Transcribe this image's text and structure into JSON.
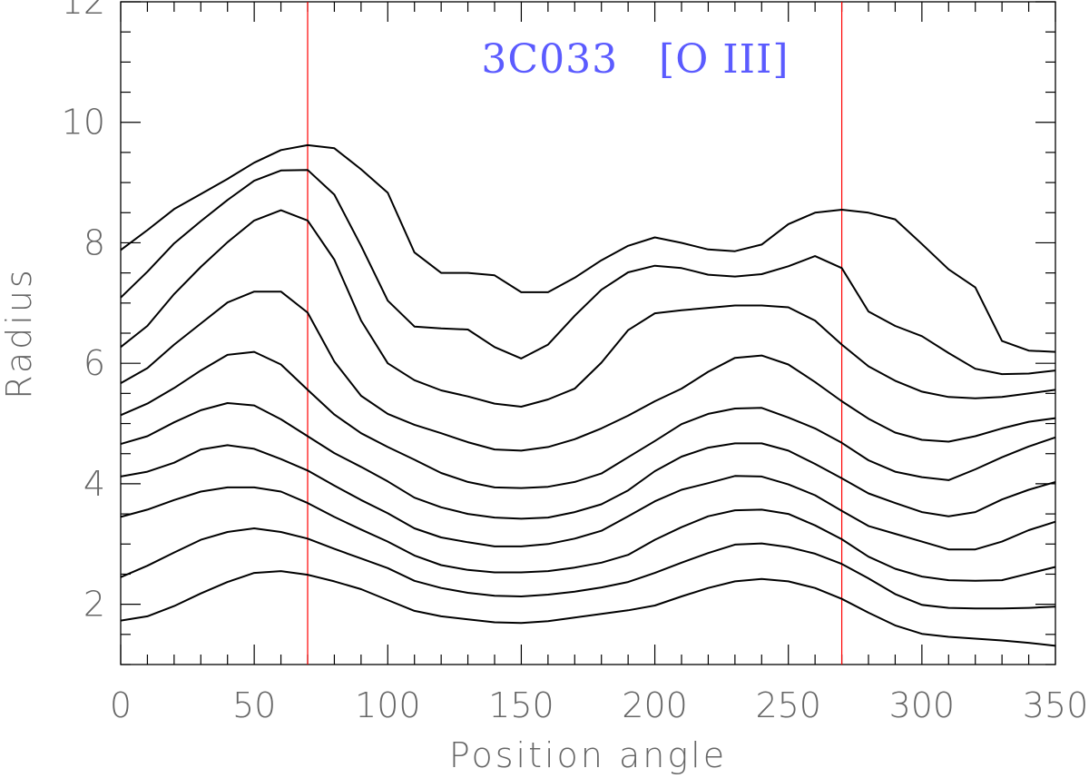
{
  "chart_data": {
    "type": "line",
    "title": "3C033   [O III]",
    "title_color": "#5b5bff",
    "xlabel": "Position angle",
    "ylabel": "Radius",
    "xlim": [
      0,
      350
    ],
    "ylim": [
      1,
      12
    ],
    "x_major_ticks": [
      0,
      50,
      100,
      150,
      200,
      250,
      300,
      350
    ],
    "y_major_ticks": [
      2,
      4,
      6,
      8,
      10,
      12
    ],
    "x_minor_step": 10,
    "y_minor_step": 0.5,
    "grid": false,
    "line_color": "#000000",
    "reference_lines": {
      "x": [
        70,
        270
      ],
      "color": "#ff0000"
    },
    "series": [
      {
        "x": [
          0,
          10,
          20,
          30,
          40,
          50,
          60,
          70,
          80,
          90,
          100,
          110,
          120,
          130,
          140,
          150,
          160,
          170,
          180,
          190,
          200,
          210,
          220,
          230,
          240,
          250,
          260,
          270,
          280,
          290,
          300,
          310,
          320,
          330,
          340,
          350
        ],
        "values": [
          1.73,
          1.8,
          1.97,
          2.18,
          2.37,
          2.52,
          2.55,
          2.49,
          2.38,
          2.25,
          2.07,
          1.89,
          1.8,
          1.75,
          1.7,
          1.69,
          1.72,
          1.78,
          1.84,
          1.9,
          1.98,
          2.13,
          2.27,
          2.38,
          2.42,
          2.38,
          2.27,
          2.09,
          1.86,
          1.65,
          1.51,
          1.46,
          1.43,
          1.4,
          1.36,
          1.31
        ]
      },
      {
        "x": [
          0,
          10,
          20,
          30,
          40,
          50,
          60,
          70,
          80,
          90,
          100,
          110,
          120,
          130,
          140,
          150,
          160,
          170,
          180,
          190,
          200,
          210,
          220,
          230,
          240,
          250,
          260,
          270,
          280,
          290,
          300,
          310,
          320,
          330,
          340,
          350
        ],
        "values": [
          2.45,
          2.64,
          2.86,
          3.07,
          3.2,
          3.26,
          3.2,
          3.09,
          2.92,
          2.76,
          2.6,
          2.39,
          2.27,
          2.19,
          2.14,
          2.13,
          2.16,
          2.21,
          2.28,
          2.37,
          2.52,
          2.69,
          2.85,
          2.99,
          3.01,
          2.95,
          2.84,
          2.67,
          2.43,
          2.17,
          1.99,
          1.94,
          1.93,
          1.93,
          1.94,
          1.96
        ]
      },
      {
        "x": [
          0,
          10,
          20,
          30,
          40,
          50,
          60,
          70,
          80,
          90,
          100,
          110,
          120,
          130,
          140,
          150,
          160,
          170,
          180,
          190,
          200,
          210,
          220,
          230,
          240,
          250,
          260,
          270,
          280,
          290,
          300,
          310,
          320,
          330,
          340,
          350
        ],
        "values": [
          3.45,
          3.57,
          3.73,
          3.87,
          3.94,
          3.94,
          3.87,
          3.68,
          3.45,
          3.24,
          3.04,
          2.81,
          2.65,
          2.57,
          2.53,
          2.53,
          2.55,
          2.61,
          2.69,
          2.82,
          3.07,
          3.28,
          3.46,
          3.56,
          3.57,
          3.5,
          3.31,
          3.08,
          2.79,
          2.59,
          2.46,
          2.4,
          2.39,
          2.4,
          2.51,
          2.62
        ]
      },
      {
        "x": [
          0,
          10,
          20,
          30,
          40,
          50,
          60,
          70,
          80,
          90,
          100,
          110,
          120,
          130,
          140,
          150,
          160,
          170,
          180,
          190,
          200,
          210,
          220,
          230,
          240,
          250,
          260,
          270,
          280,
          290,
          300,
          310,
          320,
          330,
          340,
          350
        ],
        "values": [
          4.12,
          4.2,
          4.35,
          4.57,
          4.64,
          4.58,
          4.41,
          4.22,
          3.97,
          3.73,
          3.51,
          3.26,
          3.11,
          3.03,
          2.96,
          2.96,
          3.0,
          3.09,
          3.22,
          3.46,
          3.71,
          3.9,
          4.01,
          4.13,
          4.12,
          3.99,
          3.81,
          3.55,
          3.3,
          3.17,
          3.04,
          2.91,
          2.91,
          3.04,
          3.23,
          3.37
        ]
      },
      {
        "x": [
          0,
          10,
          20,
          30,
          40,
          50,
          60,
          70,
          80,
          90,
          100,
          110,
          120,
          130,
          140,
          150,
          160,
          170,
          180,
          190,
          200,
          210,
          220,
          230,
          240,
          250,
          260,
          270,
          280,
          290,
          300,
          310,
          320,
          330,
          340,
          350
        ],
        "values": [
          4.66,
          4.79,
          5.02,
          5.22,
          5.34,
          5.3,
          5.07,
          4.79,
          4.51,
          4.28,
          4.04,
          3.77,
          3.61,
          3.5,
          3.44,
          3.42,
          3.44,
          3.53,
          3.66,
          3.89,
          4.21,
          4.45,
          4.6,
          4.67,
          4.67,
          4.55,
          4.33,
          4.09,
          3.84,
          3.68,
          3.53,
          3.46,
          3.53,
          3.74,
          3.9,
          4.03
        ]
      },
      {
        "x": [
          0,
          10,
          20,
          30,
          40,
          50,
          60,
          70,
          80,
          90,
          100,
          110,
          120,
          130,
          140,
          150,
          160,
          170,
          180,
          190,
          200,
          210,
          220,
          230,
          240,
          250,
          260,
          270,
          280,
          290,
          300,
          310,
          320,
          330,
          340,
          350
        ],
        "values": [
          5.14,
          5.33,
          5.59,
          5.88,
          6.14,
          6.19,
          5.98,
          5.56,
          5.15,
          4.84,
          4.61,
          4.4,
          4.18,
          4.03,
          3.94,
          3.93,
          3.95,
          4.03,
          4.17,
          4.44,
          4.71,
          4.99,
          5.16,
          5.25,
          5.26,
          5.1,
          4.92,
          4.68,
          4.39,
          4.2,
          4.11,
          4.06,
          4.24,
          4.44,
          4.62,
          4.77
        ]
      },
      {
        "x": [
          0,
          10,
          20,
          30,
          40,
          50,
          60,
          70,
          80,
          90,
          100,
          110,
          120,
          130,
          140,
          150,
          160,
          170,
          180,
          190,
          200,
          210,
          220,
          230,
          240,
          250,
          260,
          270,
          280,
          290,
          300,
          310,
          320,
          330,
          340,
          350
        ],
        "values": [
          5.67,
          5.92,
          6.31,
          6.66,
          7.01,
          7.19,
          7.19,
          6.84,
          6.03,
          5.46,
          5.16,
          4.98,
          4.84,
          4.69,
          4.57,
          4.55,
          4.61,
          4.74,
          4.92,
          5.13,
          5.37,
          5.58,
          5.86,
          6.09,
          6.13,
          5.98,
          5.69,
          5.37,
          5.08,
          4.85,
          4.73,
          4.7,
          4.79,
          4.92,
          5.03,
          5.09
        ]
      },
      {
        "x": [
          0,
          10,
          20,
          30,
          40,
          50,
          60,
          70,
          80,
          90,
          100,
          110,
          120,
          130,
          140,
          150,
          160,
          170,
          180,
          190,
          200,
          210,
          220,
          230,
          240,
          250,
          260,
          270,
          280,
          290,
          300,
          310,
          320,
          330,
          340,
          350
        ],
        "values": [
          6.27,
          6.62,
          7.15,
          7.6,
          8.01,
          8.37,
          8.54,
          8.37,
          7.72,
          6.71,
          6.0,
          5.72,
          5.55,
          5.45,
          5.33,
          5.28,
          5.4,
          5.58,
          6.01,
          6.55,
          6.83,
          6.88,
          6.92,
          6.96,
          6.96,
          6.93,
          6.71,
          6.31,
          5.95,
          5.71,
          5.53,
          5.44,
          5.42,
          5.44,
          5.5,
          5.56
        ]
      },
      {
        "x": [
          0,
          10,
          20,
          30,
          40,
          50,
          60,
          70,
          80,
          90,
          100,
          110,
          120,
          130,
          140,
          150,
          160,
          170,
          180,
          190,
          200,
          210,
          220,
          230,
          240,
          250,
          260,
          270,
          280,
          290,
          300,
          310,
          320,
          330,
          340,
          350
        ],
        "values": [
          7.09,
          7.52,
          7.99,
          8.36,
          8.71,
          9.03,
          9.2,
          9.21,
          8.8,
          7.95,
          7.04,
          6.61,
          6.58,
          6.56,
          6.27,
          6.08,
          6.31,
          6.79,
          7.22,
          7.51,
          7.62,
          7.58,
          7.47,
          7.44,
          7.48,
          7.61,
          7.78,
          7.58,
          6.86,
          6.62,
          6.45,
          6.17,
          5.91,
          5.82,
          5.83,
          5.88
        ]
      },
      {
        "x": [
          0,
          10,
          20,
          30,
          40,
          50,
          60,
          70,
          80,
          90,
          100,
          110,
          120,
          130,
          140,
          150,
          160,
          170,
          180,
          190,
          200,
          210,
          220,
          230,
          240,
          250,
          260,
          270,
          280,
          290,
          300,
          310,
          320,
          330,
          340,
          350
        ],
        "values": [
          7.88,
          8.21,
          8.56,
          8.81,
          9.06,
          9.33,
          9.54,
          9.62,
          9.57,
          9.22,
          8.83,
          7.84,
          7.5,
          7.5,
          7.46,
          7.18,
          7.18,
          7.42,
          7.71,
          7.95,
          8.09,
          8.0,
          7.89,
          7.86,
          7.97,
          8.31,
          8.5,
          8.55,
          8.5,
          8.39,
          7.98,
          7.56,
          7.26,
          6.37,
          6.21,
          6.19
        ]
      }
    ]
  }
}
